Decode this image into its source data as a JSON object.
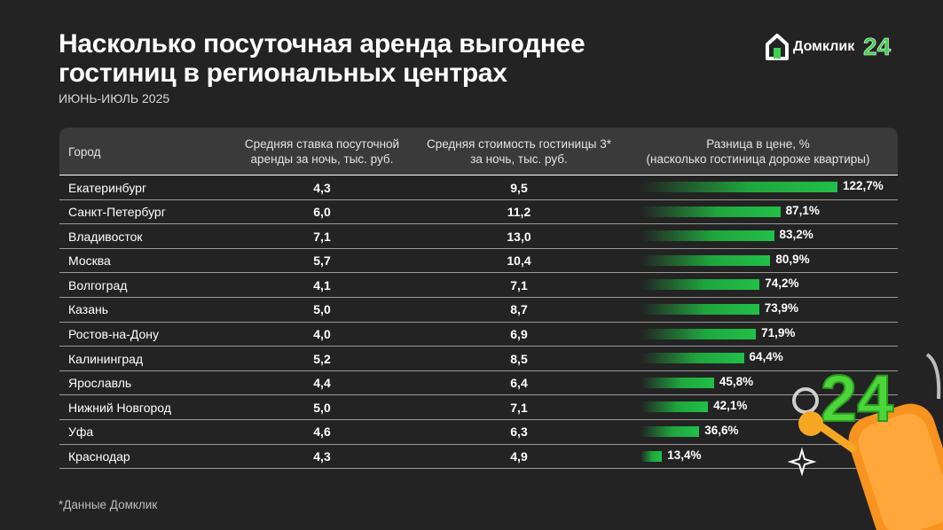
{
  "header": {
    "title": "Насколько посуточная аренда выгоднее гостиниц в региональных центрах",
    "subtitle": "ИЮНЬ-ИЮЛЬ 2025"
  },
  "logo": {
    "text": "Домклик"
  },
  "footnote": "*Данные Домклик",
  "colors": {
    "background": "#232323",
    "header_bg": "#3a3a3a",
    "bar": "#21c048",
    "accent_logo": "#3fd24f"
  },
  "chart_data": {
    "type": "table",
    "title": "Насколько посуточная аренда выгоднее гостиниц в региональных центрах",
    "subtitle": "ИЮНЬ-ИЮЛЬ 2025",
    "columns": [
      "Город",
      "Средняя ставка посуточной аренды за ночь, тыс. руб.",
      "Средняя стоимость гостиницы 3* за ночь, тыс. руб.",
      "Разница в цене, % (насколько гостиница дороже квартиры)"
    ],
    "bar_max": 122.7,
    "rows": [
      {
        "city": "Екатеринбург",
        "rent": "4,3",
        "hotel": "9,5",
        "diff": 122.7,
        "diff_label": "122,7%"
      },
      {
        "city": "Санкт-Петербург",
        "rent": "6,0",
        "hotel": "11,2",
        "diff": 87.1,
        "diff_label": "87,1%"
      },
      {
        "city": "Владивосток",
        "rent": "7,1",
        "hotel": "13,0",
        "diff": 83.2,
        "diff_label": "83,2%"
      },
      {
        "city": "Москва",
        "rent": "5,7",
        "hotel": "10,4",
        "diff": 80.9,
        "diff_label": "80,9%"
      },
      {
        "city": "Волгоград",
        "rent": "4,1",
        "hotel": "7,1",
        "diff": 74.2,
        "diff_label": "74,2%"
      },
      {
        "city": "Казань",
        "rent": "5,0",
        "hotel": "8,7",
        "diff": 73.9,
        "diff_label": "73,9%"
      },
      {
        "city": "Ростов-на-Дону",
        "rent": "4,0",
        "hotel": "6,9",
        "diff": 71.9,
        "diff_label": "71,9%"
      },
      {
        "city": "Калининград",
        "rent": "5,2",
        "hotel": "8,5",
        "diff": 64.4,
        "diff_label": "64,4%"
      },
      {
        "city": "Ярославль",
        "rent": "4,4",
        "hotel": "6,4",
        "diff": 45.8,
        "diff_label": "45,8%"
      },
      {
        "city": "Нижний Новгород",
        "rent": "5,0",
        "hotel": "7,1",
        "diff": 42.1,
        "diff_label": "42,1%"
      },
      {
        "city": "Уфа",
        "rent": "4,6",
        "hotel": "6,3",
        "diff": 36.6,
        "diff_label": "36,6%"
      },
      {
        "city": "Краснодар",
        "rent": "4,3",
        "hotel": "4,9",
        "diff": 13.4,
        "diff_label": "13,4%"
      }
    ]
  },
  "table_header": {
    "c1": "Город",
    "c2_line1": "Средняя ставка посуточной",
    "c2_line2": "аренды за ночь, тыс. руб.",
    "c3_line1": "Средняя стоимость гостиницы 3*",
    "c3_line2": "за ночь, тыс. руб.",
    "c4_line1": "Разница в цене, %",
    "c4_line2": "(насколько гостиница дороже квартиры)"
  }
}
